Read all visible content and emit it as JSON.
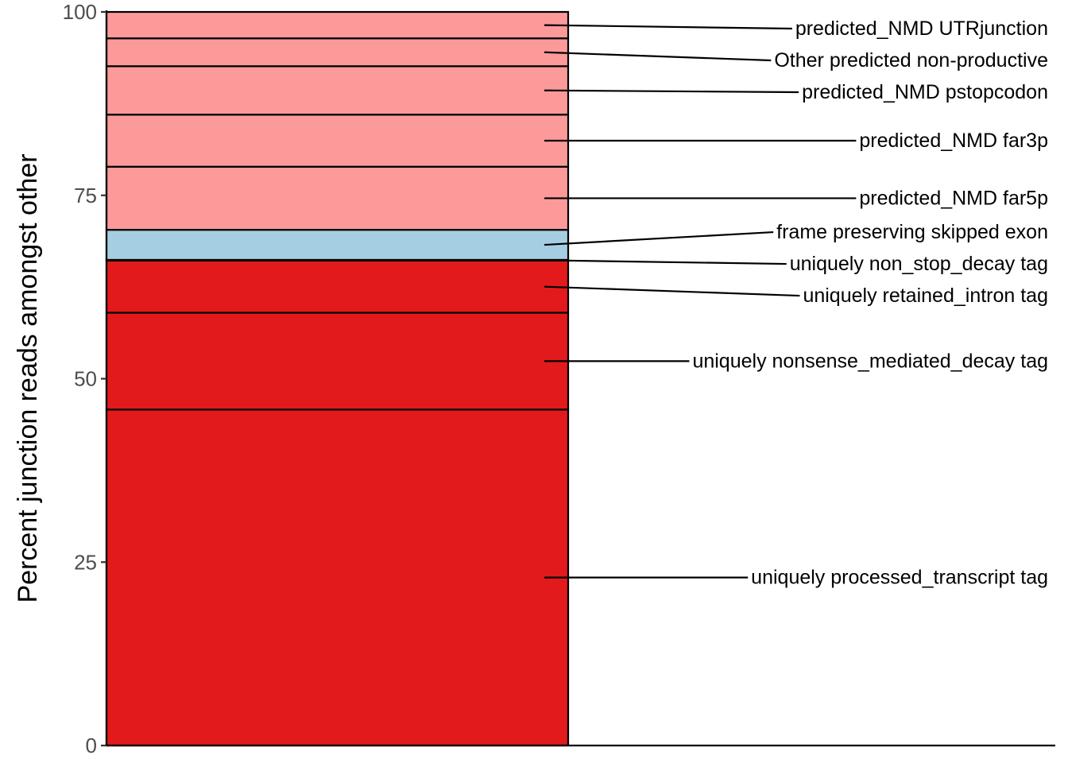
{
  "chart_data": {
    "type": "bar",
    "stacked": true,
    "xlabel": "",
    "ylabel": "Percent junction reads amongst other",
    "ylim": [
      0,
      100
    ],
    "y_ticks": [
      0,
      25,
      50,
      75,
      100
    ],
    "grid": false,
    "legend": "none (segments labeled directly to the right of the bar)",
    "segments": [
      {
        "label": "uniquely processed_transcript tag",
        "value": 45.8,
        "color": "#e31a1c"
      },
      {
        "label": "uniquely nonsense_mediated_decay tag",
        "value": 13.2,
        "color": "#e31a1c"
      },
      {
        "label": "uniquely retained_intron tag",
        "value": 7.1,
        "color": "#e31a1c"
      },
      {
        "label": "uniquely non_stop_decay tag",
        "value": 0.1,
        "color": "#e31a1c"
      },
      {
        "label": "frame preserving skipped exon ",
        "value": 4.1,
        "color": "#a6cee3"
      },
      {
        "label": "predicted_NMD far5p",
        "value": 8.6,
        "color": "#fb9a99"
      },
      {
        "label": "predicted_NMD far3p",
        "value": 7.1,
        "color": "#fb9a99"
      },
      {
        "label": "predicted_NMD pstopcodon",
        "value": 6.6,
        "color": "#fb9a99"
      },
      {
        "label": "Other predicted non-productive",
        "value": 3.8,
        "color": "#fb9a99"
      },
      {
        "label": "predicted_NMD UTRjunction",
        "value": 3.6,
        "color": "#fb9a99"
      }
    ]
  }
}
